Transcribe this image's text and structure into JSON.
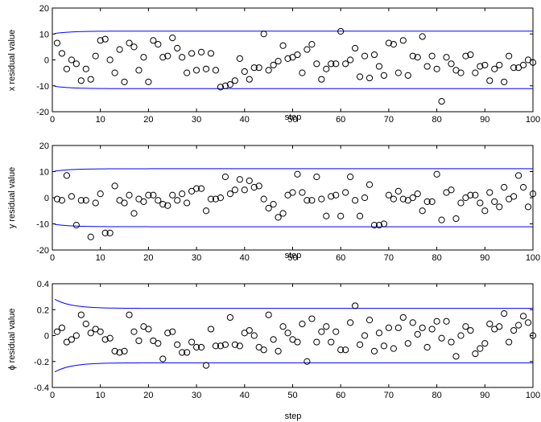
{
  "chart_data": [
    {
      "type": "scatter",
      "xlabel": "step",
      "ylabel": "x residual value",
      "xlim": [
        0,
        100
      ],
      "ylim": [
        -20,
        20
      ],
      "xticks": [
        0,
        10,
        20,
        30,
        40,
        50,
        60,
        70,
        80,
        90,
        100
      ],
      "yticks": [
        -20,
        -10,
        0,
        10,
        20
      ],
      "colors": {
        "points": "#000000",
        "bound": "#0000ff"
      },
      "bound": {
        "start": 10.2,
        "steady": 11.1
      },
      "x": [
        1,
        2,
        3,
        4,
        5,
        6,
        7,
        8,
        9,
        10,
        11,
        12,
        13,
        14,
        15,
        16,
        17,
        18,
        19,
        20,
        21,
        22,
        23,
        24,
        25,
        26,
        27,
        28,
        29,
        30,
        31,
        32,
        33,
        34,
        35,
        36,
        37,
        38,
        39,
        40,
        41,
        42,
        43,
        44,
        45,
        46,
        47,
        48,
        49,
        50,
        51,
        52,
        53,
        54,
        55,
        56,
        57,
        58,
        59,
        60,
        61,
        62,
        63,
        64,
        65,
        66,
        67,
        68,
        69,
        70,
        71,
        72,
        73,
        74,
        75,
        76,
        77,
        78,
        79,
        80,
        81,
        82,
        83,
        84,
        85,
        86,
        87,
        88,
        89,
        90,
        91,
        92,
        93,
        94,
        95,
        96,
        97,
        98,
        99,
        100
      ],
      "y": [
        6.5,
        2.5,
        -3.5,
        0,
        -1.5,
        -8,
        -3.5,
        -7.5,
        1.5,
        7.5,
        8,
        0,
        -5,
        4,
        -8.5,
        6.5,
        5,
        -4,
        1,
        -8.5,
        7.5,
        6,
        1,
        1.5,
        8.5,
        4.5,
        1,
        -5,
        2.5,
        -4,
        3,
        -3.5,
        2.5,
        -4,
        -10.5,
        -10,
        -9.5,
        -8,
        0.5,
        -4.5,
        -7.5,
        -3,
        -3,
        10,
        -4,
        -2,
        -0.5,
        5.5,
        0.5,
        1,
        2,
        -5,
        4,
        6,
        -1.5,
        -7.5,
        -3.5,
        -1.5,
        -1.5,
        11,
        -1.5,
        0,
        4.5,
        -6.5,
        1.5,
        -7,
        2,
        -2.5,
        -6,
        6.5,
        6,
        -5,
        7.5,
        -6,
        1.5,
        1,
        9,
        -2.5,
        1.5,
        -3.5,
        -16,
        1,
        -1.5,
        -4,
        -5,
        1.5,
        2,
        -5,
        -2.5,
        -2,
        -8,
        -3.5,
        -2,
        -8.5,
        1.5,
        -3,
        -3,
        -2,
        0,
        -1
      ]
    },
    {
      "type": "scatter",
      "xlabel": "step",
      "ylabel": "y residual value",
      "xlim": [
        0,
        100
      ],
      "ylim": [
        -20,
        20
      ],
      "xticks": [
        0,
        10,
        20,
        30,
        40,
        50,
        60,
        70,
        80,
        90,
        100
      ],
      "yticks": [
        -20,
        -10,
        0,
        10,
        20
      ],
      "colors": {
        "points": "#000000",
        "bound": "#0000ff"
      },
      "bound": {
        "start": 10.2,
        "steady": 11.1
      },
      "x": [
        1,
        2,
        3,
        4,
        5,
        6,
        7,
        8,
        9,
        10,
        11,
        12,
        13,
        14,
        15,
        16,
        17,
        18,
        19,
        20,
        21,
        22,
        23,
        24,
        25,
        26,
        27,
        28,
        29,
        30,
        31,
        32,
        33,
        34,
        35,
        36,
        37,
        38,
        39,
        40,
        41,
        42,
        43,
        44,
        45,
        46,
        47,
        48,
        49,
        50,
        51,
        52,
        53,
        54,
        55,
        56,
        57,
        58,
        59,
        60,
        61,
        62,
        63,
        64,
        65,
        66,
        67,
        68,
        69,
        70,
        71,
        72,
        73,
        74,
        75,
        76,
        77,
        78,
        79,
        80,
        81,
        82,
        83,
        84,
        85,
        86,
        87,
        88,
        89,
        90,
        91,
        92,
        93,
        94,
        95,
        96,
        97,
        98,
        99,
        100
      ],
      "y": [
        -0.5,
        -1,
        8.5,
        0.5,
        -10.5,
        -1,
        -1,
        -15,
        -2,
        1.5,
        -13.5,
        -13.5,
        4.5,
        -1,
        -2,
        1,
        -6,
        -0.5,
        -1.5,
        1,
        1,
        -1,
        -2.5,
        -3,
        1,
        -1,
        1.5,
        -2,
        2.5,
        3.5,
        3.5,
        -5,
        -0.5,
        -0.5,
        0,
        8,
        1.5,
        3,
        7,
        3,
        6.5,
        4,
        4.5,
        -0.5,
        -4,
        -2.5,
        -7.5,
        -6,
        1,
        2,
        9,
        2,
        -1,
        -1,
        8,
        -0.5,
        -7,
        0.5,
        1,
        -7,
        2,
        8,
        -1,
        -7,
        0,
        5,
        -10.5,
        -10.5,
        -10,
        1,
        -0.5,
        2.5,
        -0.5,
        -1,
        0,
        1.5,
        -5,
        -1.5,
        -1.5,
        9,
        -8.5,
        2,
        3,
        -8,
        -2,
        0,
        1,
        1,
        -2,
        -5,
        2,
        -1.5,
        -3.5,
        4,
        -0.5,
        0.5,
        8.5,
        4,
        -3.5,
        1.5
      ]
    },
    {
      "type": "scatter",
      "xlabel": "step",
      "ylabel": "ϕ residual value",
      "xlim": [
        0,
        100
      ],
      "ylim": [
        -0.4,
        0.4
      ],
      "xticks": [
        0,
        10,
        20,
        30,
        40,
        50,
        60,
        70,
        80,
        90,
        100
      ],
      "yticks": [
        -0.4,
        -0.2,
        0,
        0.2,
        0.4
      ],
      "colors": {
        "points": "#000000",
        "bound": "#0000ff"
      },
      "bound": {
        "start": 0.28,
        "steady": 0.21
      },
      "x": [
        1,
        2,
        3,
        4,
        5,
        6,
        7,
        8,
        9,
        10,
        11,
        12,
        13,
        14,
        15,
        16,
        17,
        18,
        19,
        20,
        21,
        22,
        23,
        24,
        25,
        26,
        27,
        28,
        29,
        30,
        31,
        32,
        33,
        34,
        35,
        36,
        37,
        38,
        39,
        40,
        41,
        42,
        43,
        44,
        45,
        46,
        47,
        48,
        49,
        50,
        51,
        52,
        53,
        54,
        55,
        56,
        57,
        58,
        59,
        60,
        61,
        62,
        63,
        64,
        65,
        66,
        67,
        68,
        69,
        70,
        71,
        72,
        73,
        74,
        75,
        76,
        77,
        78,
        79,
        80,
        81,
        82,
        83,
        84,
        85,
        86,
        87,
        88,
        89,
        90,
        91,
        92,
        93,
        94,
        95,
        96,
        97,
        98,
        99,
        100
      ],
      "y": [
        0.03,
        0.06,
        -0.05,
        -0.03,
        0,
        0.16,
        0.09,
        0.02,
        0.05,
        0.03,
        -0.03,
        -0.02,
        -0.12,
        -0.13,
        -0.12,
        0.16,
        0.03,
        -0.04,
        0.07,
        0.05,
        -0.04,
        -0.06,
        -0.18,
        0.02,
        0.03,
        -0.07,
        -0.13,
        -0.13,
        -0.05,
        -0.09,
        -0.09,
        -0.23,
        0.05,
        -0.08,
        -0.08,
        -0.07,
        0.14,
        -0.07,
        -0.08,
        0.02,
        0.04,
        0,
        -0.09,
        -0.11,
        0.16,
        -0.03,
        -0.12,
        0.07,
        0.02,
        -0.03,
        -0.05,
        0.09,
        -0.2,
        0.13,
        -0.05,
        0.03,
        0.07,
        -0.05,
        0.03,
        -0.11,
        -0.11,
        0.1,
        0.23,
        -0.07,
        0,
        0.12,
        -0.12,
        0.02,
        -0.08,
        0.06,
        -0.1,
        0.06,
        0.14,
        -0.06,
        0.1,
        0.01,
        0.06,
        -0.09,
        0.05,
        0.11,
        -0.02,
        0.11,
        -0.05,
        -0.16,
        0,
        0.07,
        0.04,
        -0.14,
        -0.1,
        -0.06,
        0.09,
        0.05,
        0.07,
        0.17,
        -0.05,
        0.04,
        0.08,
        0.15,
        0.1,
        0
      ]
    }
  ]
}
